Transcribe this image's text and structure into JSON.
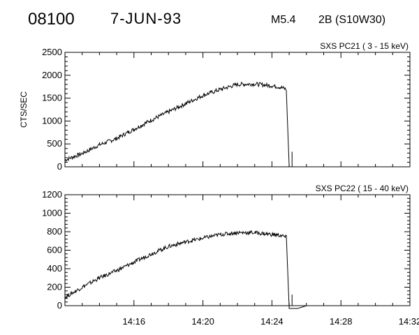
{
  "header": {
    "event_id": "08100",
    "date": "7-JUN-93",
    "flare_class": "M5.4",
    "flare_location": "2B (S10W30)"
  },
  "chart_data": [
    {
      "type": "line",
      "title": "SXS PC21  (  3 - 15 keV)",
      "ylabel": "CTS/SEC",
      "xlabel": "",
      "ylim": [
        0,
        2500
      ],
      "yticks": [
        0,
        500,
        1000,
        1500,
        2000,
        2500
      ],
      "xlim": [
        "14:12",
        "14:32"
      ],
      "xticks": [
        "14:16",
        "14:20",
        "14:24",
        "14:28",
        "14:32"
      ],
      "show_xtick_labels": false,
      "series": [
        {
          "x": [
            "14:12:00",
            "14:13:00",
            "14:14:00",
            "14:15:00",
            "14:16:00",
            "14:17:00",
            "14:18:00",
            "14:19:00",
            "14:20:00",
            "14:21:00",
            "14:22:00",
            "14:23:00",
            "14:24:00",
            "14:24:30",
            "14:24:50",
            "14:25:00",
            "14:25:30",
            "14:26:00",
            "14:28:00",
            "14:32:00"
          ],
          "values": [
            150,
            290,
            480,
            620,
            820,
            1020,
            1200,
            1380,
            1560,
            1690,
            1800,
            1810,
            1770,
            1740,
            1690,
            0,
            0,
            0,
            0,
            0
          ]
        }
      ],
      "spike": {
        "x": "14:25:10",
        "value": 330
      }
    },
    {
      "type": "line",
      "title": "SXS PC22  ( 15 - 40 keV)",
      "ylabel": "",
      "xlabel": "",
      "ylim": [
        0,
        1200
      ],
      "yticks": [
        0,
        200,
        400,
        600,
        800,
        1000,
        1200
      ],
      "xlim": [
        "14:12",
        "14:32"
      ],
      "xticks": [
        "14:16",
        "14:20",
        "14:24",
        "14:28",
        "14:32"
      ],
      "show_xtick_labels": true,
      "series": [
        {
          "x": [
            "14:12:00",
            "14:13:00",
            "14:14:00",
            "14:15:00",
            "14:16:00",
            "14:17:00",
            "14:18:00",
            "14:19:00",
            "14:20:00",
            "14:21:00",
            "14:22:00",
            "14:23:00",
            "14:24:00",
            "14:24:30",
            "14:24:50",
            "14:25:00",
            "14:25:30",
            "14:26:00",
            "14:28:00",
            "14:32:00"
          ],
          "values": [
            90,
            200,
            300,
            380,
            470,
            560,
            640,
            690,
            730,
            770,
            790,
            790,
            770,
            760,
            740,
            -30,
            -30,
            0,
            0,
            0
          ]
        }
      ],
      "spike": {
        "x": "14:25:10",
        "value": 120
      }
    }
  ]
}
